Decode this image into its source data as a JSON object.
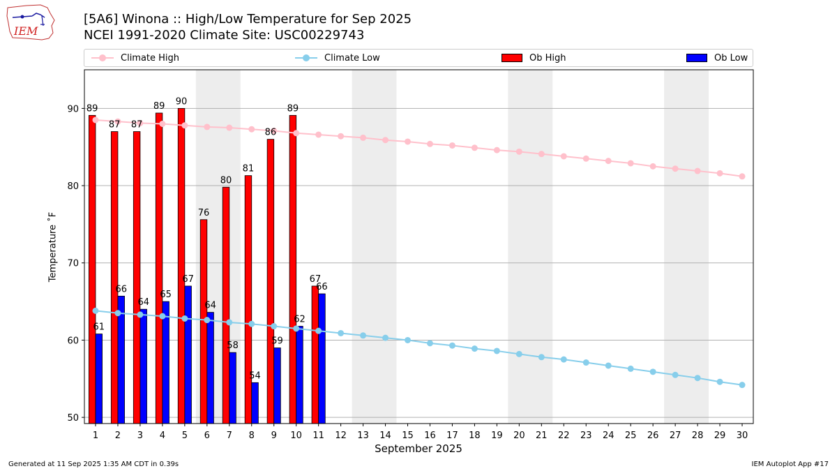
{
  "header": {
    "title_line1": "[5A6] Winona :: High/Low Temperature for Sep 2025",
    "title_line2": "NCEI 1991-2020 Climate Site: USC00229743"
  },
  "logo": {
    "text": "IEM"
  },
  "legend": {
    "items": [
      {
        "label": "Climate High",
        "color": "#ffc0cb",
        "kind": "line"
      },
      {
        "label": "Climate Low",
        "color": "#87ceeb",
        "kind": "line"
      },
      {
        "label": "Ob High",
        "color": "#ff0000",
        "kind": "bar"
      },
      {
        "label": "Ob Low",
        "color": "#0000ff",
        "kind": "bar"
      }
    ]
  },
  "footer": {
    "left": "Generated at 11 Sep 2025 1:35 AM CDT in 0.39s",
    "right": "IEM Autoplot App #17"
  },
  "chart_data": {
    "type": "bar",
    "title": "[5A6] Winona :: High/Low Temperature for Sep 2025",
    "xlabel": "September 2025",
    "ylabel": "Temperature ˚F",
    "ylim": [
      49.2,
      95
    ],
    "xlim": [
      0.5,
      30.5
    ],
    "yticks": [
      50,
      60,
      70,
      80,
      90
    ],
    "grid": true,
    "weekend_shading": [
      [
        6,
        7
      ],
      [
        13,
        14
      ],
      [
        20,
        21
      ],
      [
        27,
        28
      ]
    ],
    "days": [
      1,
      2,
      3,
      4,
      5,
      6,
      7,
      8,
      9,
      10,
      11,
      12,
      13,
      14,
      15,
      16,
      17,
      18,
      19,
      20,
      21,
      22,
      23,
      24,
      25,
      26,
      27,
      28,
      29,
      30
    ],
    "series": [
      {
        "name": "Ob High",
        "color": "#ff0000",
        "kind": "bar",
        "values": [
          89.1,
          87,
          87,
          89.4,
          90,
          75.6,
          79.8,
          81.3,
          86,
          89.1,
          67
        ],
        "labels": [
          "89",
          "87",
          "87",
          "89",
          "90",
          "76",
          "80",
          "81",
          "86",
          "89",
          "67"
        ]
      },
      {
        "name": "Ob Low",
        "color": "#0000ff",
        "kind": "bar",
        "values": [
          60.8,
          65.7,
          64,
          65,
          67,
          63.6,
          58.4,
          54.5,
          59,
          61.8,
          66
        ],
        "labels": [
          "61",
          "66",
          "64",
          "65",
          "67",
          "64",
          "58",
          "54",
          "59",
          "62",
          "66"
        ]
      },
      {
        "name": "Climate High",
        "color": "#ffc0cb",
        "kind": "line",
        "values": [
          88.5,
          88.3,
          88.1,
          88.0,
          87.8,
          87.6,
          87.5,
          87.3,
          87.1,
          86.8,
          86.6,
          86.4,
          86.2,
          85.9,
          85.7,
          85.4,
          85.2,
          84.9,
          84.6,
          84.4,
          84.1,
          83.8,
          83.5,
          83.2,
          82.9,
          82.5,
          82.2,
          81.9,
          81.6,
          81.2
        ]
      },
      {
        "name": "Climate Low",
        "color": "#87ceeb",
        "kind": "line",
        "values": [
          63.8,
          63.5,
          63.3,
          63.1,
          62.8,
          62.6,
          62.3,
          62.1,
          61.8,
          61.5,
          61.2,
          60.9,
          60.6,
          60.3,
          60.0,
          59.6,
          59.3,
          58.9,
          58.6,
          58.2,
          57.8,
          57.5,
          57.1,
          56.7,
          56.3,
          55.9,
          55.5,
          55.1,
          54.6,
          54.2
        ]
      }
    ]
  }
}
